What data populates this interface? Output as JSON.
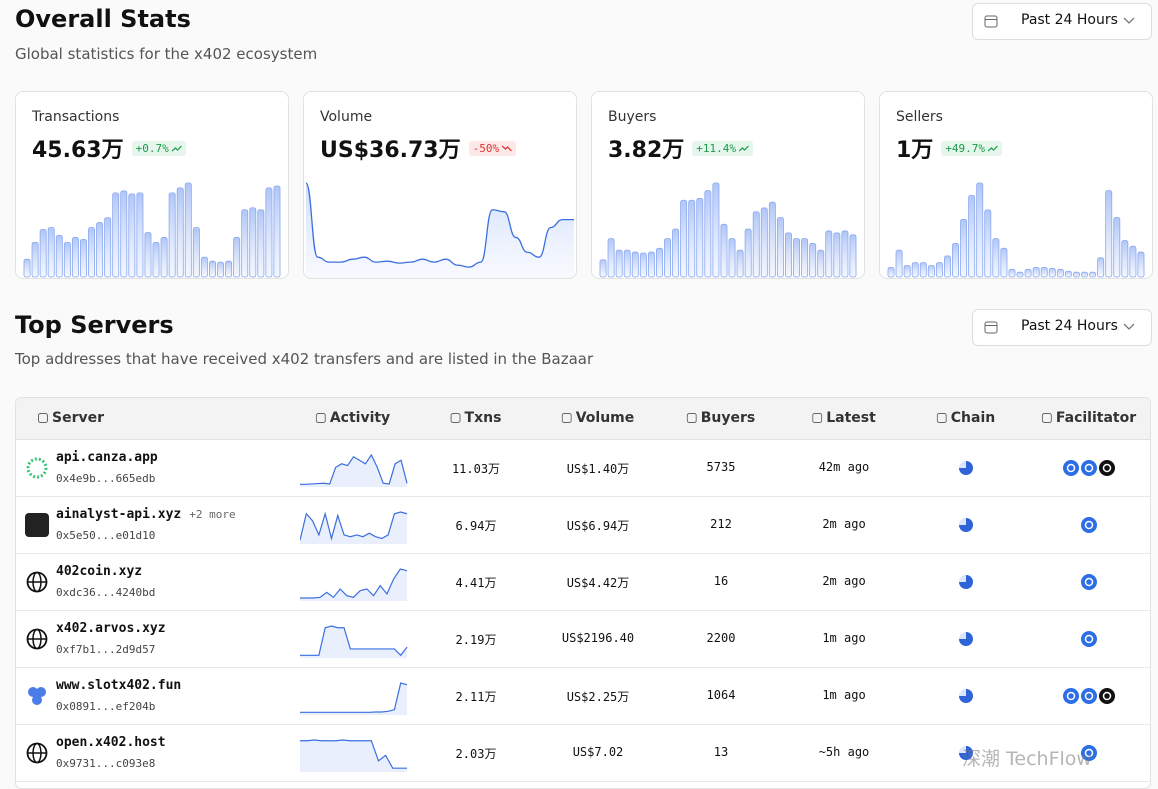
{
  "overall": {
    "title": "Overall Stats",
    "subtitle": "Global statistics for the x402 ecosystem",
    "range": "Past 24 Hours",
    "cards": [
      {
        "label": "Transactions",
        "value": "45.63万",
        "change": "+0.7%",
        "trend": "up",
        "chart": "bar",
        "values": [
          18,
          35,
          48,
          50,
          42,
          35,
          40,
          38,
          50,
          55,
          60,
          85,
          87,
          84,
          85,
          45,
          35,
          40,
          85,
          90,
          95,
          50,
          20,
          16,
          15,
          16,
          40,
          68,
          70,
          68,
          90,
          92
        ]
      },
      {
        "label": "Volume",
        "value": "US$36.73万",
        "change": "-50%",
        "trend": "down",
        "chart": "line",
        "values": [
          95,
          20,
          15,
          15,
          18,
          20,
          15,
          16,
          14,
          15,
          18,
          15,
          18,
          12,
          10,
          15,
          68,
          66,
          40,
          25,
          20,
          50,
          58,
          58
        ]
      },
      {
        "label": "Buyers",
        "value": "3.82万",
        "change": "+11.4%",
        "trend": "up",
        "chart": "bar",
        "values": [
          18,
          40,
          28,
          28,
          26,
          25,
          26,
          30,
          40,
          50,
          80,
          80,
          82,
          90,
          98,
          55,
          40,
          28,
          50,
          68,
          72,
          78,
          62,
          46,
          40,
          40,
          35,
          28,
          48,
          46,
          48,
          44
        ]
      },
      {
        "label": "Sellers",
        "value": "1万",
        "change": "+49.7%",
        "trend": "up",
        "chart": "bar",
        "values": [
          10,
          28,
          12,
          15,
          15,
          12,
          15,
          22,
          35,
          60,
          85,
          98,
          70,
          40,
          30,
          8,
          5,
          8,
          10,
          10,
          9,
          8,
          6,
          5,
          5,
          5,
          20,
          90,
          62,
          38,
          32,
          26
        ]
      }
    ]
  },
  "servers": {
    "title": "Top Servers",
    "subtitle": "Top addresses that have received x402 transfers and are listed in the Bazaar",
    "range": "Past 24 Hours",
    "columns": [
      "Server",
      "Activity",
      "Txns",
      "Volume",
      "Buyers",
      "Latest",
      "Chain",
      "Facilitator"
    ],
    "rows": [
      {
        "name": "api.canza.app",
        "address": "0x4e9b...665edb",
        "activity": [
          2,
          2,
          3,
          4,
          5,
          3,
          50,
          60,
          55,
          80,
          70,
          60,
          85,
          50,
          5,
          3,
          60,
          70,
          5
        ],
        "txns": "11.03万",
        "volume": "US$1.40万",
        "buyers": "5735",
        "latest": "42m ago",
        "facilitators": 3
      },
      {
        "name": "ainalyst-api.xyz",
        "more": "+2 more",
        "address": "0x5e50...e01d10",
        "activity": [
          5,
          80,
          60,
          20,
          80,
          10,
          75,
          20,
          15,
          20,
          15,
          25,
          15,
          10,
          20,
          80,
          85,
          80
        ],
        "txns": "6.94万",
        "volume": "US$6.94万",
        "buyers": "212",
        "latest": "2m ago",
        "facilitators": 1
      },
      {
        "name": "402coin.xyz",
        "address": "0xdc36...4240bd",
        "activity": [
          3,
          3,
          3,
          5,
          20,
          5,
          30,
          10,
          5,
          25,
          30,
          10,
          40,
          15,
          60,
          90,
          85
        ],
        "txns": "4.41万",
        "volume": "US$4.42万",
        "buyers": "16",
        "latest": "2m ago",
        "facilitators": 1
      },
      {
        "name": "x402.arvos.xyz",
        "address": "0xf7b1...2d9d57",
        "activity": [
          2,
          2,
          2,
          2,
          80,
          85,
          80,
          80,
          20,
          20,
          20,
          20,
          20,
          20,
          20,
          20,
          2,
          25
        ],
        "txns": "2.19万",
        "volume": "US$2196.40",
        "buyers": "2200",
        "latest": "1m ago",
        "facilitators": 1
      },
      {
        "name": "www.slotx402.fun",
        "address": "0x0891...ef204b",
        "activity": [
          2,
          2,
          2,
          2,
          2,
          2,
          2,
          2,
          2,
          2,
          2,
          2,
          3,
          3,
          5,
          10,
          90,
          85
        ],
        "txns": "2.11万",
        "volume": "US$2.25万",
        "buyers": "1064",
        "latest": "1m ago",
        "facilitators": 3
      },
      {
        "name": "open.x402.host",
        "address": "0x9731...c093e8",
        "activity": [
          80,
          80,
          82,
          80,
          80,
          80,
          82,
          80,
          80,
          80,
          80,
          25,
          40,
          5,
          5,
          5
        ],
        "txns": "2.03万",
        "volume": "US$7.02",
        "buyers": "13",
        "latest": "~5h ago",
        "facilitators": 1
      }
    ]
  },
  "watermark": "深潮 TechFlow"
}
